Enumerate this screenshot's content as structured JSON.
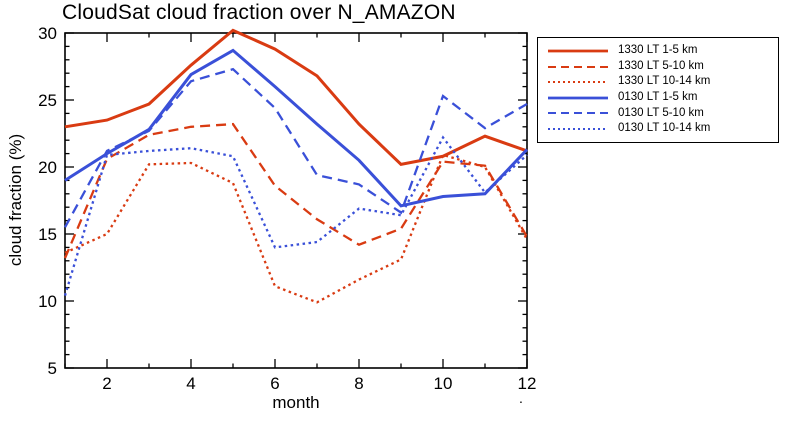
{
  "title": "CloudSat cloud fraction over N_AMAZON",
  "stray_mark": ".",
  "chart_data": {
    "type": "line",
    "title": "CloudSat cloud fraction over N_AMAZON",
    "xlabel": "month",
    "ylabel": "cloud fraction (%)",
    "x": [
      1,
      2,
      3,
      4,
      5,
      6,
      7,
      8,
      9,
      10,
      11,
      12
    ],
    "xlim": [
      1,
      12
    ],
    "ylim": [
      5,
      30
    ],
    "xticks": [
      2,
      4,
      6,
      8,
      10,
      12
    ],
    "yticks": [
      5,
      10,
      15,
      20,
      25,
      30
    ],
    "grid": false,
    "legend_position": "top-right-outside",
    "axis_color": "#000000",
    "series": [
      {
        "name": "1330 LT 1-5 km",
        "color": "#d93b12",
        "style": "solid",
        "values": [
          23.0,
          23.5,
          24.7,
          27.6,
          30.2,
          28.8,
          26.8,
          23.2,
          20.2,
          20.8,
          22.3,
          21.2
        ]
      },
      {
        "name": "1330 LT 5-10 km",
        "color": "#d93b12",
        "style": "dashed",
        "values": [
          13.2,
          20.6,
          22.4,
          23.0,
          23.2,
          18.6,
          16.1,
          14.2,
          15.4,
          20.4,
          20.1,
          14.8
        ]
      },
      {
        "name": "1330 LT 10-14 km",
        "color": "#d93b12",
        "style": "dotted",
        "values": [
          13.6,
          15.0,
          20.2,
          20.3,
          18.8,
          11.1,
          9.9,
          11.6,
          13.1,
          20.9,
          20.0,
          14.6
        ]
      },
      {
        "name": "0130 LT 1-5 km",
        "color": "#3a50d8",
        "style": "solid",
        "values": [
          19.0,
          21.0,
          22.8,
          26.9,
          28.7,
          26.0,
          23.2,
          20.5,
          17.1,
          17.8,
          18.0,
          21.3
        ]
      },
      {
        "name": "0130 LT 5-10 km",
        "color": "#3a50d8",
        "style": "dashed",
        "values": [
          15.5,
          21.2,
          22.7,
          26.4,
          27.3,
          24.4,
          19.4,
          18.7,
          16.6,
          25.3,
          22.9,
          24.7
        ]
      },
      {
        "name": "0130 LT 10-14 km",
        "color": "#3a50d8",
        "style": "dotted",
        "values": [
          10.4,
          20.9,
          21.2,
          21.4,
          20.8,
          14.0,
          14.4,
          16.9,
          16.4,
          22.2,
          18.1,
          20.9
        ]
      }
    ]
  }
}
